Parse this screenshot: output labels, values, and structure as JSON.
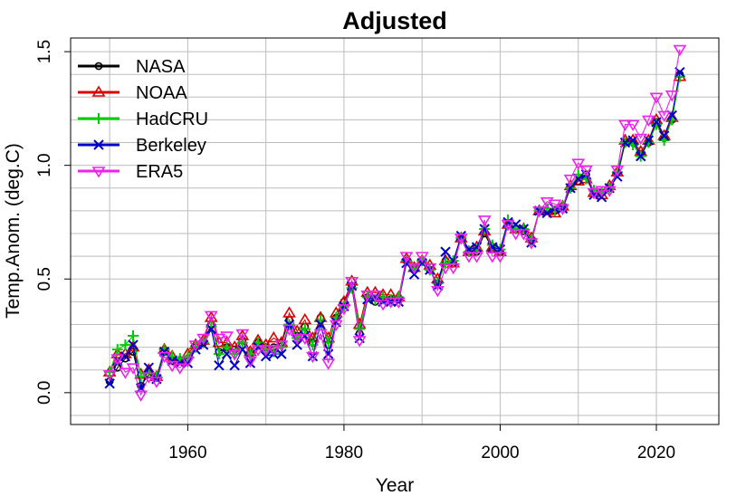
{
  "chart_data": {
    "type": "line",
    "title": "Adjusted",
    "xlabel": "Year",
    "ylabel": "Temp.Anom. (deg.C)",
    "xlim": [
      1945,
      2028
    ],
    "ylim": [
      -0.14,
      1.56
    ],
    "xticks": [
      1960,
      1980,
      2000,
      2020
    ],
    "yticks": [
      0.0,
      0.5,
      1.0,
      1.5
    ],
    "xtick_labels": [
      "1960",
      "1980",
      "2000",
      "2020"
    ],
    "ytick_labels": [
      "0.0",
      "0.5",
      "1.0",
      "1.5"
    ],
    "grid": true,
    "legend_position": "top-left",
    "x": [
      1950,
      1951,
      1952,
      1953,
      1954,
      1955,
      1956,
      1957,
      1958,
      1959,
      1960,
      1961,
      1962,
      1963,
      1964,
      1965,
      1966,
      1967,
      1968,
      1969,
      1970,
      1971,
      1972,
      1973,
      1974,
      1975,
      1976,
      1977,
      1978,
      1979,
      1980,
      1981,
      1982,
      1983,
      1984,
      1985,
      1986,
      1987,
      1988,
      1989,
      1990,
      1991,
      1992,
      1993,
      1994,
      1995,
      1996,
      1997,
      1998,
      1999,
      2000,
      2001,
      2002,
      2003,
      2004,
      2005,
      2006,
      2007,
      2008,
      2009,
      2010,
      2011,
      2012,
      2013,
      2014,
      2015,
      2016,
      2017,
      2018,
      2019,
      2020,
      2021,
      2022,
      2023
    ],
    "series": [
      {
        "name": "NASA",
        "color": "#000000",
        "marker": "circle",
        "values": [
          0.05,
          0.11,
          0.15,
          0.18,
          0.03,
          0.08,
          0.07,
          0.18,
          0.14,
          0.14,
          0.15,
          0.2,
          0.22,
          0.3,
          0.18,
          0.2,
          0.19,
          0.23,
          0.17,
          0.22,
          0.2,
          0.2,
          0.22,
          0.32,
          0.25,
          0.29,
          0.22,
          0.33,
          0.21,
          0.33,
          0.4,
          0.47,
          0.26,
          0.42,
          0.4,
          0.41,
          0.41,
          0.41,
          0.58,
          0.54,
          0.58,
          0.54,
          0.48,
          0.58,
          0.57,
          0.68,
          0.62,
          0.62,
          0.7,
          0.63,
          0.62,
          0.74,
          0.72,
          0.71,
          0.67,
          0.8,
          0.8,
          0.8,
          0.82,
          0.9,
          0.93,
          0.96,
          0.88,
          0.88,
          0.9,
          0.97,
          1.1,
          1.1,
          1.05,
          1.1,
          1.19,
          1.12,
          1.2,
          1.4
        ]
      },
      {
        "name": "NOAA",
        "color": "#dd0000",
        "marker": "triangle-up",
        "values": [
          0.09,
          0.17,
          0.17,
          0.2,
          0.08,
          0.1,
          0.07,
          0.19,
          0.16,
          0.14,
          0.17,
          0.21,
          0.23,
          0.33,
          0.22,
          0.22,
          0.2,
          0.25,
          0.18,
          0.23,
          0.21,
          0.24,
          0.22,
          0.35,
          0.27,
          0.32,
          0.24,
          0.33,
          0.24,
          0.35,
          0.4,
          0.49,
          0.3,
          0.44,
          0.44,
          0.43,
          0.43,
          0.42,
          0.59,
          0.55,
          0.58,
          0.56,
          0.5,
          0.58,
          0.57,
          0.68,
          0.62,
          0.64,
          0.71,
          0.64,
          0.62,
          0.74,
          0.72,
          0.72,
          0.68,
          0.8,
          0.8,
          0.79,
          0.82,
          0.91,
          0.93,
          0.94,
          0.88,
          0.87,
          0.91,
          0.97,
          1.11,
          1.11,
          1.06,
          1.11,
          1.2,
          1.13,
          1.21,
          1.39
        ]
      },
      {
        "name": "HadCRU",
        "color": "#00cc00",
        "marker": "plus",
        "values": [
          0.09,
          0.19,
          0.21,
          0.25,
          0.07,
          0.09,
          0.07,
          0.19,
          0.16,
          0.15,
          0.16,
          0.2,
          0.22,
          0.29,
          0.17,
          0.2,
          0.17,
          0.22,
          0.17,
          0.22,
          0.19,
          0.18,
          0.2,
          0.3,
          0.24,
          0.28,
          0.21,
          0.32,
          0.22,
          0.33,
          0.38,
          0.46,
          0.28,
          0.42,
          0.41,
          0.42,
          0.41,
          0.42,
          0.58,
          0.54,
          0.58,
          0.54,
          0.48,
          0.57,
          0.58,
          0.68,
          0.62,
          0.63,
          0.72,
          0.65,
          0.63,
          0.76,
          0.72,
          0.72,
          0.67,
          0.8,
          0.81,
          0.8,
          0.82,
          0.9,
          0.96,
          0.94,
          0.89,
          0.88,
          0.9,
          0.97,
          1.1,
          1.09,
          1.04,
          1.1,
          1.18,
          1.11,
          1.2,
          1.39
        ]
      },
      {
        "name": "Berkeley",
        "color": "#0000cc",
        "marker": "x",
        "values": [
          0.04,
          0.14,
          0.16,
          0.21,
          0.02,
          0.11,
          0.06,
          0.18,
          0.14,
          0.13,
          0.13,
          0.19,
          0.21,
          0.28,
          0.12,
          0.17,
          0.12,
          0.19,
          0.13,
          0.2,
          0.16,
          0.17,
          0.17,
          0.3,
          0.21,
          0.25,
          0.16,
          0.3,
          0.17,
          0.31,
          0.38,
          0.47,
          0.24,
          0.41,
          0.42,
          0.4,
          0.4,
          0.4,
          0.57,
          0.52,
          0.57,
          0.54,
          0.47,
          0.62,
          0.58,
          0.69,
          0.63,
          0.64,
          0.72,
          0.64,
          0.63,
          0.75,
          0.74,
          0.72,
          0.66,
          0.8,
          0.79,
          0.81,
          0.81,
          0.9,
          0.94,
          0.96,
          0.87,
          0.86,
          0.9,
          0.95,
          1.1,
          1.11,
          1.04,
          1.11,
          1.19,
          1.13,
          1.22,
          1.41
        ]
      },
      {
        "name": "ERA5",
        "color": "#ee22ee",
        "marker": "triangle-down",
        "values": [
          0.08,
          0.15,
          0.09,
          0.11,
          -0.01,
          0.07,
          0.05,
          0.16,
          0.12,
          0.11,
          0.14,
          0.21,
          0.24,
          0.34,
          0.24,
          0.25,
          0.17,
          0.26,
          0.14,
          0.19,
          0.19,
          0.19,
          0.21,
          0.28,
          0.24,
          0.24,
          0.16,
          0.26,
          0.13,
          0.3,
          0.37,
          0.49,
          0.23,
          0.43,
          0.43,
          0.39,
          0.4,
          0.4,
          0.6,
          0.55,
          0.6,
          0.55,
          0.45,
          0.55,
          0.55,
          0.68,
          0.6,
          0.6,
          0.76,
          0.6,
          0.6,
          0.74,
          0.7,
          0.7,
          0.66,
          0.8,
          0.84,
          0.83,
          0.81,
          0.94,
          1.01,
          0.98,
          0.88,
          0.89,
          0.89,
          0.98,
          1.18,
          1.18,
          1.12,
          1.2,
          1.3,
          1.22,
          1.31,
          1.51
        ]
      }
    ]
  }
}
